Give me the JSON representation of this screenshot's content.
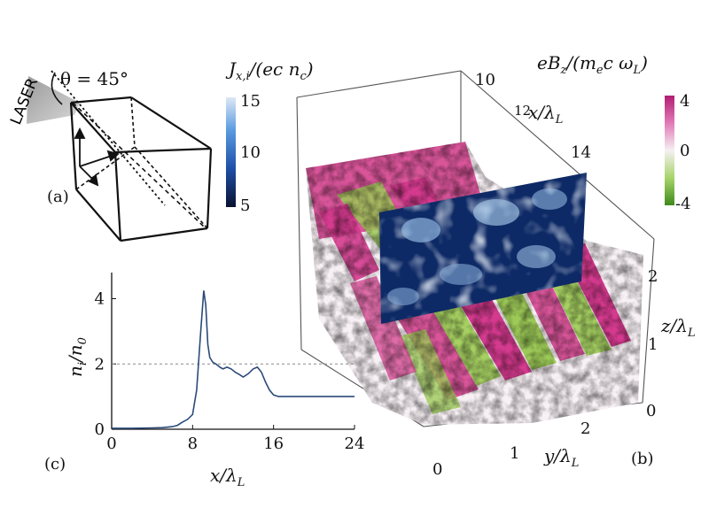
{
  "panels": {
    "a": {
      "label": "(a)",
      "laser_label": "LASER",
      "angle_label": "θ = 45°"
    },
    "b": {
      "label": "(b)",
      "current_colorbar": {
        "title": "J_{x,i}/(e c n_c)",
        "ticks": [
          "15",
          "10",
          "5"
        ],
        "range": [
          5,
          15
        ],
        "colors": [
          "#0a1230",
          "#1e4fa8",
          "#5a9be0",
          "#dde8f5"
        ]
      },
      "field_colorbar": {
        "title": "eB_z/(m_e c ω_L)",
        "ticks": [
          "4",
          "0",
          "-4"
        ],
        "range": [
          -4,
          4
        ],
        "colors": [
          "#3e8a1a",
          "#a8d46a",
          "#f5f0f2",
          "#e27ab8",
          "#b01e72"
        ]
      },
      "axes": {
        "x_label": "x/λ_L",
        "x_ticks": [
          "10",
          "12",
          "14"
        ],
        "y_label": "y/λ_L",
        "y_ticks": [
          "0",
          "1",
          "2"
        ],
        "z_label": "z/λ_L",
        "z_ticks": [
          "0",
          "1",
          "2"
        ]
      }
    },
    "c": {
      "label": "(c)",
      "chart_data": {
        "type": "line",
        "xlabel": "x/λ_L",
        "ylabel": "n_i/n_0",
        "xlim": [
          0,
          24
        ],
        "ylim": [
          0,
          4.8
        ],
        "x_ticks": [
          0,
          8,
          16,
          24
        ],
        "y_ticks": [
          0,
          2,
          4
        ],
        "reference_line_y": 2,
        "series": [
          {
            "x": [
              0,
              2,
              4,
              5,
              6,
              6.5,
              7,
              7.5,
              8,
              8.4,
              8.8,
              9.1,
              9.3,
              9.5,
              9.7,
              10.0,
              10.3,
              10.7,
              11.0,
              11.4,
              11.8,
              12.2,
              12.6,
              13.0,
              13.5,
              14.0,
              14.4,
              14.8,
              15.2,
              15.6,
              16.0,
              16.5,
              17.0,
              18.0,
              20.0,
              22.0,
              24.0
            ],
            "y": [
              0.03,
              0.03,
              0.04,
              0.05,
              0.08,
              0.12,
              0.22,
              0.3,
              0.45,
              1.2,
              3.0,
              4.25,
              3.8,
              2.6,
              2.2,
              2.05,
              2.0,
              1.9,
              1.85,
              1.9,
              1.85,
              1.75,
              1.68,
              1.6,
              1.7,
              1.85,
              1.9,
              1.75,
              1.45,
              1.2,
              1.05,
              1.0,
              1.0,
              1.0,
              1.0,
              1.0,
              1.0
            ]
          }
        ]
      }
    }
  }
}
